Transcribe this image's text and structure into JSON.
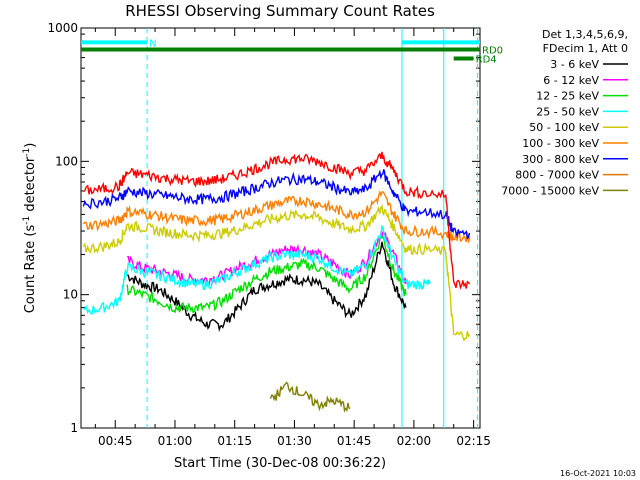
{
  "chart_data": {
    "type": "line",
    "title": "RHESSI Observing Summary Count Rates",
    "xlabel": "Start Time (30-Dec-08 00:36:22)",
    "ylabel_main": "Count Rate (s",
    "ylabel_sup1": "-1",
    "ylabel_mid": " detector",
    "ylabel_sup2": "-1",
    "ylabel_end": ")",
    "yscale": "log",
    "ylim": [
      1,
      1000
    ],
    "xlim_minutes": [
      36.4,
      136.6
    ],
    "x_ticks": [
      {
        "label": "00:45",
        "min": 45
      },
      {
        "label": "01:00",
        "min": 60
      },
      {
        "label": "01:15",
        "min": 75
      },
      {
        "label": "01:30",
        "min": 90
      },
      {
        "label": "01:45",
        "min": 105
      },
      {
        "label": "02:00",
        "min": 120
      },
      {
        "label": "02:15",
        "min": 135
      }
    ],
    "y_ticks": [
      {
        "label": "1",
        "value": 1
      },
      {
        "label": "10",
        "value": 10
      },
      {
        "label": "100",
        "value": 100
      },
      {
        "label": "1000",
        "value": 1000
      }
    ],
    "legend_header": [
      "Det 1,3,4,5,6,9,",
      "FDecim 1, Att 0"
    ],
    "legend_position": "right",
    "series": [
      {
        "name": "3 - 6 keV",
        "color": "#000000",
        "points": [
          [
            48,
            14
          ],
          [
            52,
            12
          ],
          [
            56,
            11
          ],
          [
            60,
            9
          ],
          [
            64,
            7
          ],
          [
            68,
            6
          ],
          [
            72,
            6
          ],
          [
            76,
            8
          ],
          [
            80,
            11
          ],
          [
            84,
            12
          ],
          [
            88,
            13
          ],
          [
            92,
            13
          ],
          [
            96,
            12
          ],
          [
            100,
            9
          ],
          [
            104,
            7
          ],
          [
            108,
            10
          ],
          [
            112,
            25
          ],
          [
            115,
            12
          ],
          [
            118,
            8
          ]
        ]
      },
      {
        "name": "6 - 12 keV",
        "color": "#ff00ff",
        "points": [
          [
            48,
            18
          ],
          [
            52,
            16
          ],
          [
            56,
            15
          ],
          [
            60,
            14
          ],
          [
            64,
            13
          ],
          [
            68,
            13
          ],
          [
            72,
            14
          ],
          [
            76,
            16
          ],
          [
            80,
            18
          ],
          [
            84,
            20
          ],
          [
            88,
            22
          ],
          [
            92,
            22
          ],
          [
            96,
            20
          ],
          [
            100,
            17
          ],
          [
            104,
            14
          ],
          [
            108,
            18
          ],
          [
            112,
            30
          ],
          [
            115,
            20
          ],
          [
            118,
            12
          ]
        ]
      },
      {
        "name": "12 - 25 keV",
        "color": "#00dd00",
        "points": [
          [
            48,
            11
          ],
          [
            52,
            10
          ],
          [
            56,
            9
          ],
          [
            60,
            8
          ],
          [
            64,
            8
          ],
          [
            68,
            8
          ],
          [
            72,
            9
          ],
          [
            76,
            11
          ],
          [
            80,
            13
          ],
          [
            84,
            15
          ],
          [
            88,
            16
          ],
          [
            92,
            17
          ],
          [
            96,
            16
          ],
          [
            100,
            13
          ],
          [
            104,
            11
          ],
          [
            108,
            14
          ],
          [
            112,
            28
          ],
          [
            115,
            15
          ],
          [
            118,
            10
          ]
        ]
      },
      {
        "name": "25 - 50 keV",
        "color": "#00ffff",
        "points": [
          [
            37,
            7.5
          ],
          [
            42,
            8
          ],
          [
            46,
            9
          ],
          [
            48,
            16
          ],
          [
            52,
            15
          ],
          [
            56,
            14
          ],
          [
            60,
            13
          ],
          [
            64,
            12
          ],
          [
            68,
            12
          ],
          [
            72,
            13
          ],
          [
            76,
            15
          ],
          [
            80,
            17
          ],
          [
            84,
            19
          ],
          [
            88,
            20
          ],
          [
            92,
            20
          ],
          [
            96,
            19
          ],
          [
            100,
            16
          ],
          [
            104,
            14
          ],
          [
            108,
            17
          ],
          [
            112,
            31
          ],
          [
            115,
            18
          ],
          [
            118,
            12
          ],
          [
            122,
            12
          ],
          [
            124,
            12
          ]
        ]
      },
      {
        "name": "50 - 100 keV",
        "color": "#cccc00",
        "points": [
          [
            37,
            22
          ],
          [
            42,
            23
          ],
          [
            46,
            25
          ],
          [
            48,
            33
          ],
          [
            52,
            32
          ],
          [
            56,
            30
          ],
          [
            60,
            29
          ],
          [
            64,
            28
          ],
          [
            68,
            28
          ],
          [
            72,
            29
          ],
          [
            76,
            31
          ],
          [
            80,
            34
          ],
          [
            84,
            37
          ],
          [
            88,
            39
          ],
          [
            92,
            40
          ],
          [
            96,
            38
          ],
          [
            100,
            34
          ],
          [
            104,
            31
          ],
          [
            108,
            33
          ],
          [
            112,
            45
          ],
          [
            115,
            32
          ],
          [
            118,
            22
          ],
          [
            122,
            22
          ],
          [
            128,
            21
          ],
          [
            130,
            5
          ],
          [
            134,
            5
          ]
        ]
      },
      {
        "name": "100 - 300 keV",
        "color": "#ff8000",
        "points": [
          [
            37,
            33
          ],
          [
            42,
            34
          ],
          [
            46,
            36
          ],
          [
            48,
            42
          ],
          [
            52,
            41
          ],
          [
            56,
            39
          ],
          [
            60,
            37
          ],
          [
            64,
            36
          ],
          [
            68,
            36
          ],
          [
            72,
            37
          ],
          [
            76,
            40
          ],
          [
            80,
            43
          ],
          [
            84,
            47
          ],
          [
            88,
            50
          ],
          [
            92,
            51
          ],
          [
            96,
            48
          ],
          [
            100,
            44
          ],
          [
            104,
            40
          ],
          [
            108,
            42
          ],
          [
            112,
            58
          ],
          [
            115,
            40
          ],
          [
            118,
            30
          ],
          [
            122,
            30
          ],
          [
            128,
            29
          ],
          [
            130,
            27
          ],
          [
            134,
            27
          ]
        ]
      },
      {
        "name": "300 - 800 keV",
        "color": "#0000ff",
        "points": [
          [
            37,
            48
          ],
          [
            42,
            50
          ],
          [
            46,
            53
          ],
          [
            48,
            60
          ],
          [
            52,
            58
          ],
          [
            56,
            56
          ],
          [
            60,
            54
          ],
          [
            64,
            52
          ],
          [
            68,
            52
          ],
          [
            72,
            54
          ],
          [
            76,
            58
          ],
          [
            80,
            63
          ],
          [
            84,
            69
          ],
          [
            88,
            73
          ],
          [
            92,
            74
          ],
          [
            96,
            70
          ],
          [
            100,
            64
          ],
          [
            104,
            58
          ],
          [
            108,
            62
          ],
          [
            112,
            85
          ],
          [
            115,
            58
          ],
          [
            118,
            42
          ],
          [
            122,
            42
          ],
          [
            128,
            40
          ],
          [
            130,
            29
          ],
          [
            134,
            29
          ]
        ]
      },
      {
        "name": "800 - 7000 keV",
        "color": "#dd7700",
        "points": []
      },
      {
        "name": "7000 - 15000 keV",
        "color": "#808000",
        "points": [
          [
            84,
            1.6
          ],
          [
            88,
            2.1
          ],
          [
            92,
            1.8
          ],
          [
            96,
            1.5
          ],
          [
            100,
            1.6
          ],
          [
            104,
            1.4
          ]
        ]
      },
      {
        "name": "",
        "color": "#ff0000",
        "points": [
          [
            37,
            60
          ],
          [
            42,
            62
          ],
          [
            46,
            65
          ],
          [
            48,
            82
          ],
          [
            52,
            80
          ],
          [
            56,
            76
          ],
          [
            60,
            73
          ],
          [
            64,
            71
          ],
          [
            68,
            71
          ],
          [
            72,
            74
          ],
          [
            76,
            80
          ],
          [
            80,
            88
          ],
          [
            84,
            97
          ],
          [
            88,
            104
          ],
          [
            92,
            105
          ],
          [
            96,
            100
          ],
          [
            100,
            90
          ],
          [
            104,
            82
          ],
          [
            108,
            86
          ],
          [
            112,
            110
          ],
          [
            115,
            85
          ],
          [
            118,
            60
          ],
          [
            122,
            58
          ],
          [
            128,
            56
          ],
          [
            130,
            12
          ],
          [
            134,
            12
          ]
        ]
      }
    ],
    "bars": [
      {
        "label": "N",
        "color": "#00ffff",
        "start_min": 36.4,
        "end_min": 53,
        "level_value": 780
      },
      {
        "label": "",
        "color": "#00ffff",
        "start_min": 117,
        "end_min": 136.6,
        "level_value": 780
      },
      {
        "label": "RD0",
        "color": "#008000",
        "start_min": 36.4,
        "end_min": 136.6,
        "level_value": 690
      },
      {
        "label": "RD4",
        "color": "#008000",
        "start_min": 130,
        "end_min": 135,
        "level_value": 590
      }
    ],
    "vlines": [
      {
        "color": "#00ffff",
        "min": 53,
        "style": "dashed"
      },
      {
        "color": "#00ffff",
        "min": 117,
        "style": "solid"
      },
      {
        "color": "#00ffff",
        "min": 127.5,
        "style": "solid"
      },
      {
        "color": "#00ffff",
        "min": 136,
        "style": "dashed"
      }
    ],
    "footer": "16-Oct-2021 10:03"
  }
}
